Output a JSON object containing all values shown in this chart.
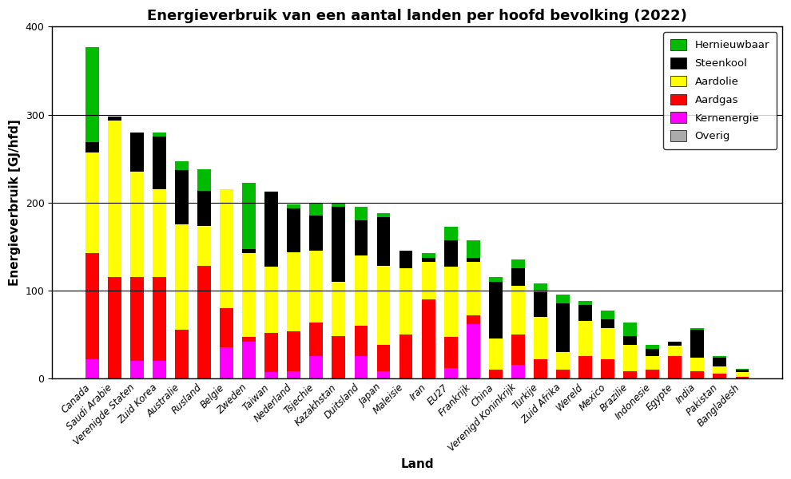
{
  "title": "Energieverbruik van een aantal landen per hoofd bevolking (2022)",
  "xlabel": "Land",
  "ylabel": "Energieverbruik [GJ/hfd]",
  "ylim": [
    0,
    400
  ],
  "yticks": [
    0,
    100,
    200,
    300,
    400
  ],
  "countries": [
    "Canada",
    "Saudi Arabie",
    "Verenigde Staten",
    "Zuid Korea",
    "Australie",
    "Rusland",
    "Belgie",
    "Zweden",
    "Taiwan",
    "Nederland",
    "Tsjechie",
    "Kazakhstan",
    "Duitsland",
    "Japan",
    "Maleisie",
    "Iran",
    "EU27",
    "Frankrijk",
    "China",
    "Verenigd Koninkrijk",
    "Turkije",
    "Zuid Afrika",
    "Wereld",
    "Mexico",
    "Brazilie",
    "Indonesie",
    "Egypte",
    "India",
    "Pakistan",
    "Bangladesh"
  ],
  "stack_order": [
    "Kernenergie",
    "Aardgas",
    "Aardolie",
    "Steenkool",
    "Hernieuwbaar",
    "Overig"
  ],
  "legend_order": [
    "Hernieuwbaar",
    "Steenkool",
    "Aardolie",
    "Aardgas",
    "Kernenergie",
    "Overig"
  ],
  "colors": {
    "Hernieuwbaar": "#00BB00",
    "Steenkool": "#000000",
    "Aardolie": "#FFFF00",
    "Aardgas": "#FF0000",
    "Kernenergie": "#FF00FF",
    "Overig": "#AAAAAA"
  },
  "data": {
    "Kernenergie": [
      22,
      0,
      20,
      20,
      0,
      0,
      35,
      42,
      7,
      8,
      25,
      0,
      25,
      8,
      0,
      0,
      12,
      62,
      0,
      15,
      0,
      0,
      0,
      0,
      0,
      0,
      0,
      0,
      0,
      0
    ],
    "Aardgas": [
      120,
      115,
      95,
      95,
      55,
      128,
      45,
      5,
      45,
      45,
      38,
      48,
      35,
      30,
      50,
      90,
      35,
      10,
      10,
      35,
      22,
      10,
      25,
      22,
      8,
      10,
      25,
      8,
      5,
      2
    ],
    "Aardolie": [
      115,
      178,
      120,
      100,
      120,
      45,
      135,
      95,
      75,
      90,
      82,
      62,
      80,
      90,
      75,
      42,
      80,
      60,
      35,
      55,
      48,
      20,
      40,
      35,
      30,
      15,
      12,
      15,
      8,
      5
    ],
    "Steenkool": [
      12,
      5,
      45,
      60,
      62,
      40,
      0,
      5,
      85,
      50,
      40,
      85,
      40,
      55,
      20,
      5,
      30,
      5,
      65,
      20,
      28,
      55,
      18,
      10,
      10,
      8,
      5,
      32,
      10,
      3
    ],
    "Hernieuwbaar": [
      108,
      0,
      0,
      5,
      10,
      25,
      0,
      75,
      0,
      5,
      15,
      5,
      15,
      5,
      0,
      5,
      15,
      20,
      5,
      10,
      10,
      10,
      5,
      10,
      15,
      5,
      0,
      2,
      2,
      1
    ],
    "Overig": [
      0,
      0,
      0,
      0,
      0,
      0,
      0,
      0,
      0,
      0,
      0,
      0,
      0,
      0,
      0,
      0,
      0,
      0,
      0,
      0,
      0,
      0,
      0,
      0,
      0,
      0,
      0,
      0,
      0,
      0
    ]
  },
  "figsize": [
    9.9,
    6.0
  ],
  "dpi": 100,
  "title_fontsize": 13,
  "axis_label_fontsize": 11,
  "tick_fontsize": 9,
  "bar_width": 0.6
}
